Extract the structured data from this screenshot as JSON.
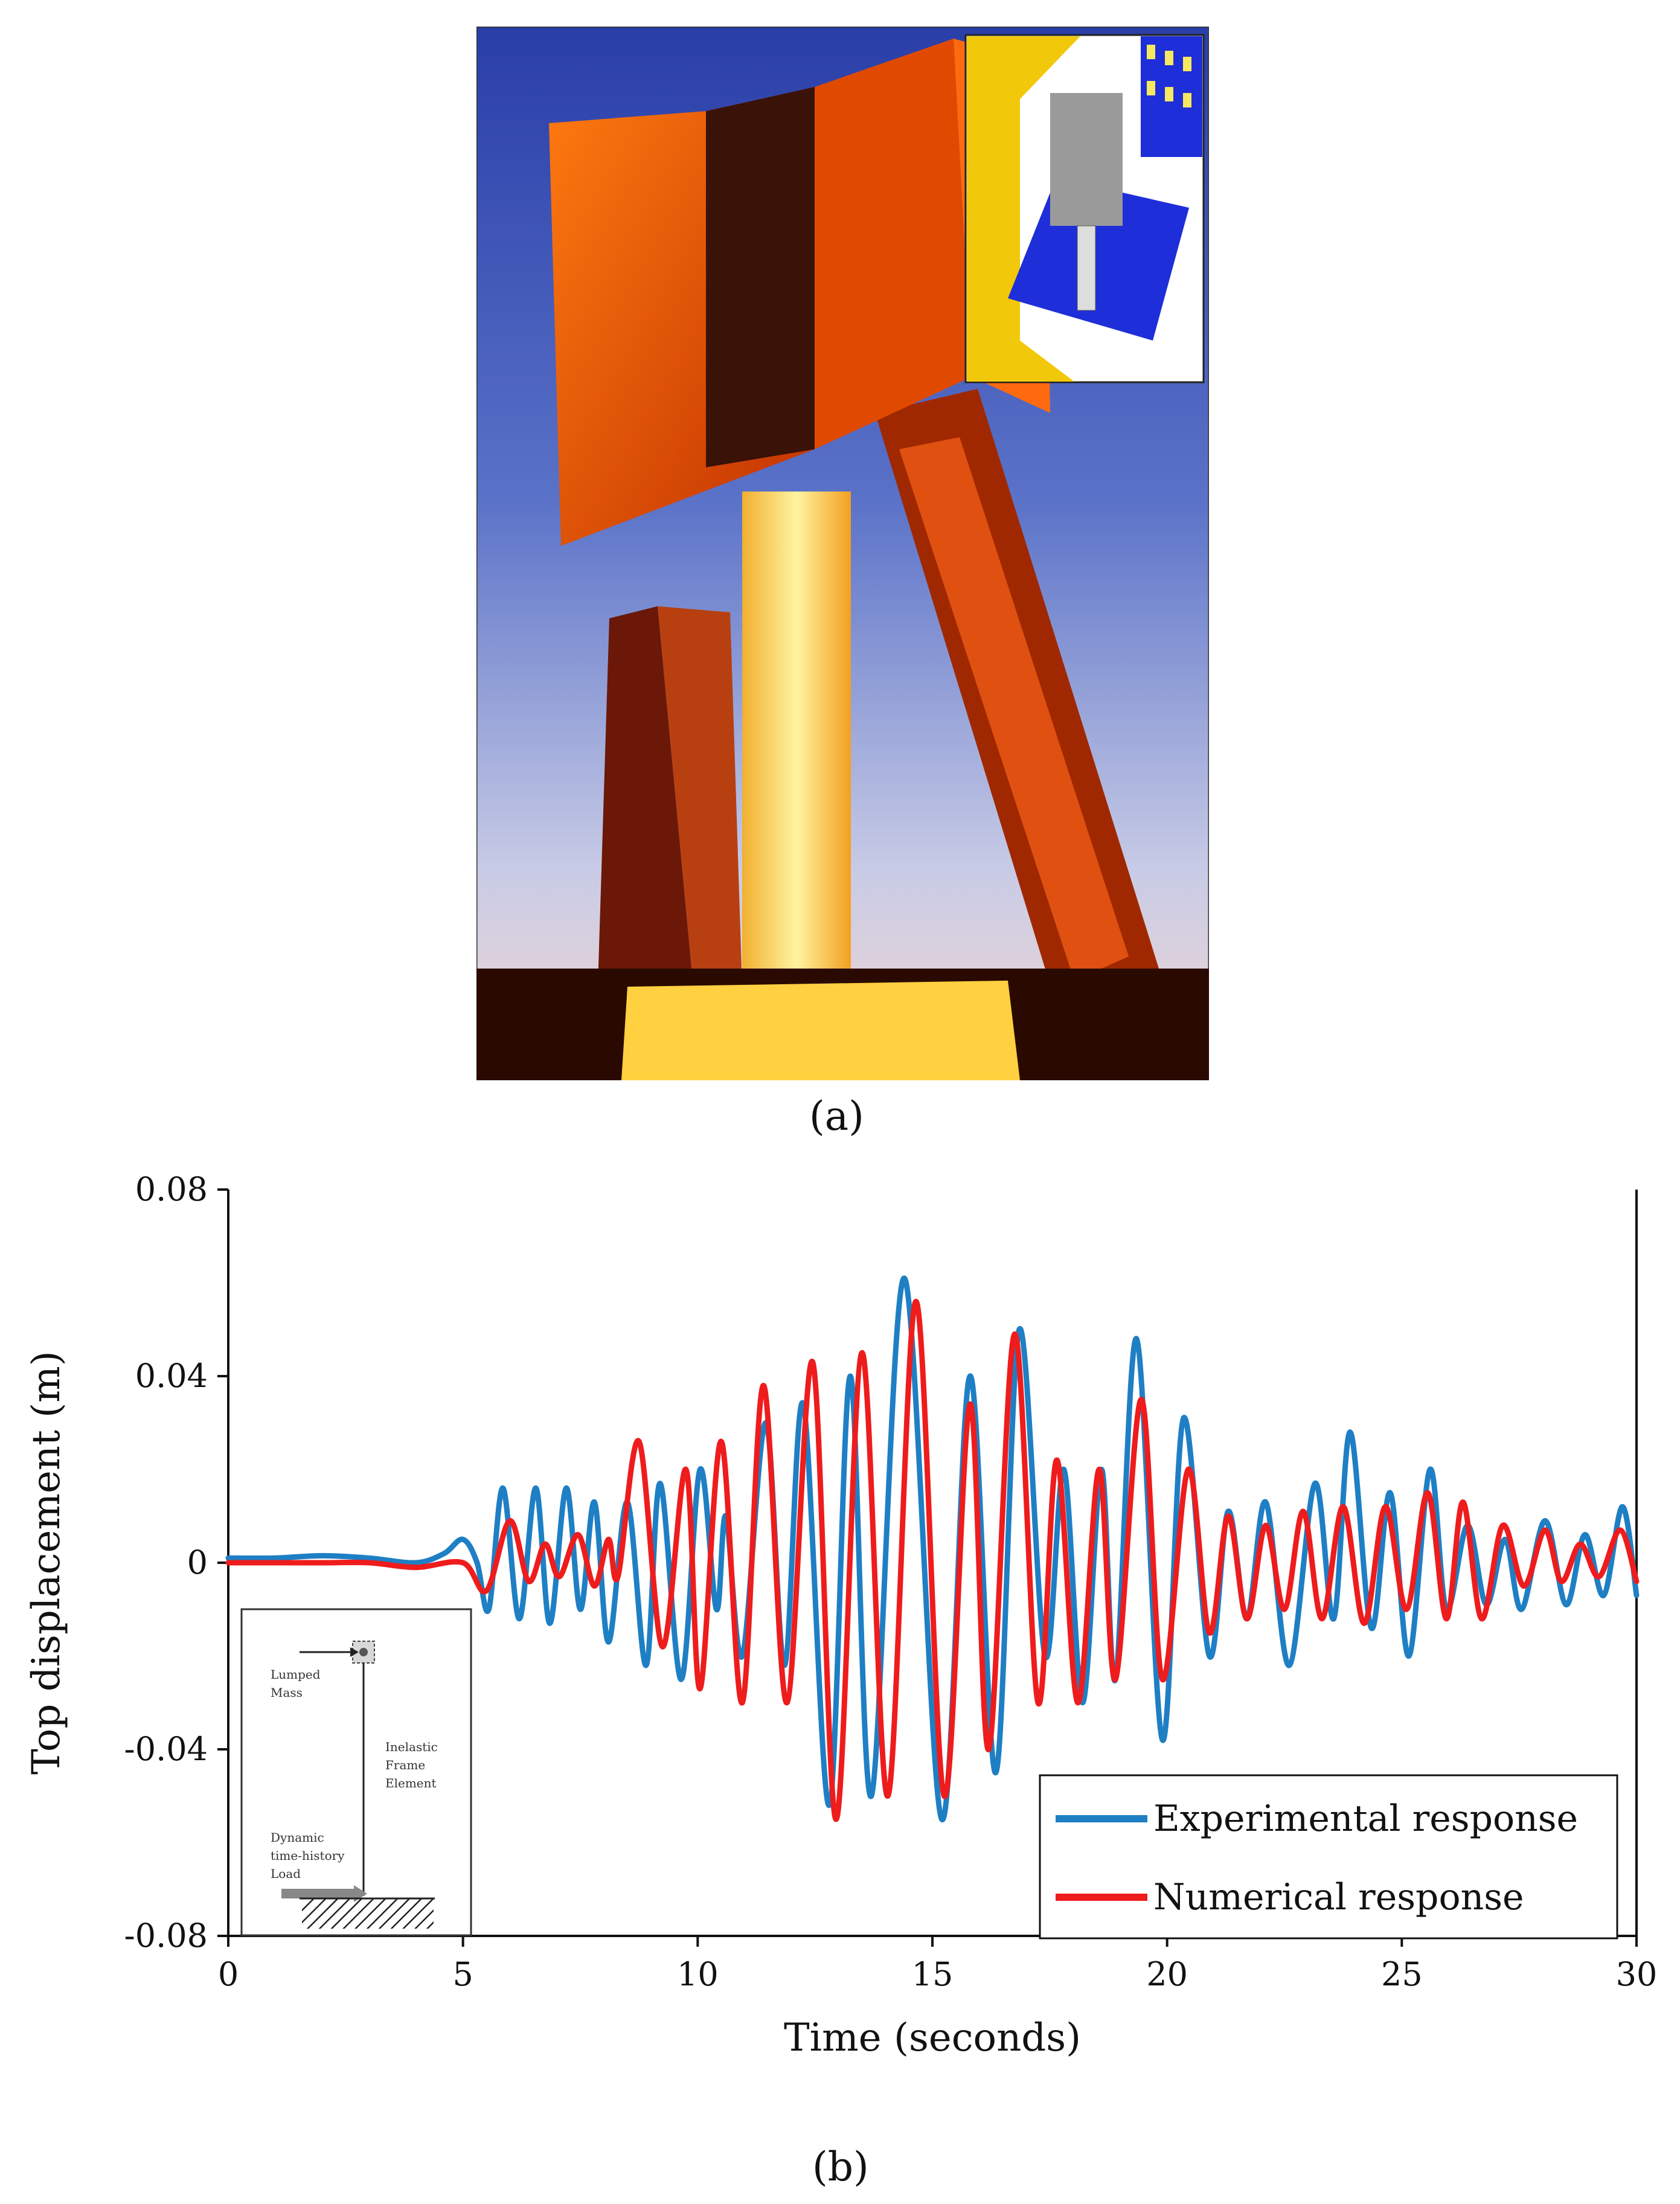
{
  "captions": {
    "a": "(a)",
    "b": "(b)"
  },
  "photo": {
    "subject": "reinforced-concrete-bridge-pier-specimen-photo",
    "inset": "test-setup-schematic"
  },
  "inset_model": {
    "lumped_mass_label": "Lumped Mass",
    "frame_label": "Inelastic Frame Element",
    "load_label": "Dynamic time-history Load"
  },
  "chart_data": {
    "type": "line",
    "title": "",
    "xlabel": "Time (seconds)",
    "ylabel": "Top displacement (m)",
    "xlim": [
      0,
      30
    ],
    "ylim": [
      -0.08,
      0.08
    ],
    "xticks": [
      0,
      5,
      10,
      15,
      20,
      25,
      30
    ],
    "yticks": [
      0.08,
      0.04,
      0,
      -0.04,
      -0.08
    ],
    "ytick_labels": [
      "0.08",
      "0.04",
      "0",
      "-0.04",
      "-0.08"
    ],
    "grid": false,
    "legend_position": "lower-right",
    "series": [
      {
        "name": "Experimental response",
        "color": "#1f7fc4",
        "points": [
          [
            0,
            0.001
          ],
          [
            1,
            0.001
          ],
          [
            2,
            0.0015
          ],
          [
            3,
            0.001
          ],
          [
            4,
            0.0
          ],
          [
            4.6,
            0.002
          ],
          [
            5.0,
            0.005
          ],
          [
            5.3,
            0.0
          ],
          [
            5.55,
            -0.01
          ],
          [
            5.85,
            0.016
          ],
          [
            6.2,
            -0.012
          ],
          [
            6.55,
            0.016
          ],
          [
            6.85,
            -0.013
          ],
          [
            7.2,
            0.016
          ],
          [
            7.5,
            -0.01
          ],
          [
            7.8,
            0.013
          ],
          [
            8.1,
            -0.017
          ],
          [
            8.5,
            0.013
          ],
          [
            8.9,
            -0.022
          ],
          [
            9.2,
            0.017
          ],
          [
            9.65,
            -0.025
          ],
          [
            10.05,
            0.02
          ],
          [
            10.4,
            -0.01
          ],
          [
            10.6,
            0.01
          ],
          [
            10.95,
            -0.02
          ],
          [
            11.45,
            0.03
          ],
          [
            11.85,
            -0.022
          ],
          [
            12.25,
            0.034
          ],
          [
            12.8,
            -0.052
          ],
          [
            13.25,
            0.04
          ],
          [
            13.7,
            -0.05
          ],
          [
            14.4,
            0.061
          ],
          [
            15.2,
            -0.055
          ],
          [
            15.8,
            0.04
          ],
          [
            16.35,
            -0.045
          ],
          [
            16.85,
            0.05
          ],
          [
            17.4,
            -0.02
          ],
          [
            17.8,
            0.02
          ],
          [
            18.2,
            -0.03
          ],
          [
            18.6,
            0.02
          ],
          [
            18.9,
            -0.025
          ],
          [
            19.35,
            0.048
          ],
          [
            19.9,
            -0.038
          ],
          [
            20.35,
            0.031
          ],
          [
            20.9,
            -0.02
          ],
          [
            21.3,
            0.011
          ],
          [
            21.7,
            -0.012
          ],
          [
            22.1,
            0.013
          ],
          [
            22.6,
            -0.022
          ],
          [
            23.15,
            0.017
          ],
          [
            23.55,
            -0.012
          ],
          [
            23.9,
            0.028
          ],
          [
            24.35,
            -0.014
          ],
          [
            24.75,
            0.015
          ],
          [
            25.15,
            -0.02
          ],
          [
            25.6,
            0.02
          ],
          [
            25.95,
            -0.01
          ],
          [
            26.4,
            0.008
          ],
          [
            26.8,
            -0.009
          ],
          [
            27.2,
            0.005
          ],
          [
            27.55,
            -0.01
          ],
          [
            28.05,
            0.009
          ],
          [
            28.5,
            -0.009
          ],
          [
            28.9,
            0.006
          ],
          [
            29.3,
            -0.007
          ],
          [
            29.7,
            0.012
          ],
          [
            30,
            -0.007
          ]
        ]
      },
      {
        "name": "Numerical response",
        "color": "#ee1c1c",
        "points": [
          [
            0,
            0.0
          ],
          [
            1,
            0.0
          ],
          [
            2,
            0.0
          ],
          [
            3,
            0.0
          ],
          [
            4,
            -0.001
          ],
          [
            5.0,
            0.0
          ],
          [
            5.5,
            -0.006
          ],
          [
            6.0,
            0.009
          ],
          [
            6.4,
            -0.004
          ],
          [
            6.75,
            0.004
          ],
          [
            7.05,
            -0.003
          ],
          [
            7.45,
            0.006
          ],
          [
            7.8,
            -0.005
          ],
          [
            8.1,
            0.005
          ],
          [
            8.3,
            -0.003
          ],
          [
            8.75,
            0.026
          ],
          [
            9.25,
            -0.018
          ],
          [
            9.75,
            0.02
          ],
          [
            10.05,
            -0.027
          ],
          [
            10.5,
            0.026
          ],
          [
            10.95,
            -0.03
          ],
          [
            11.4,
            0.038
          ],
          [
            11.9,
            -0.03
          ],
          [
            12.45,
            0.043
          ],
          [
            12.95,
            -0.055
          ],
          [
            13.5,
            0.045
          ],
          [
            14.05,
            -0.05
          ],
          [
            14.65,
            0.056
          ],
          [
            15.25,
            -0.05
          ],
          [
            15.8,
            0.034
          ],
          [
            16.2,
            -0.04
          ],
          [
            16.75,
            0.049
          ],
          [
            17.25,
            -0.03
          ],
          [
            17.65,
            0.022
          ],
          [
            18.1,
            -0.03
          ],
          [
            18.55,
            0.02
          ],
          [
            18.9,
            -0.025
          ],
          [
            19.45,
            0.035
          ],
          [
            19.9,
            -0.025
          ],
          [
            20.45,
            0.02
          ],
          [
            20.9,
            -0.015
          ],
          [
            21.3,
            0.01
          ],
          [
            21.7,
            -0.012
          ],
          [
            22.1,
            0.008
          ],
          [
            22.5,
            -0.01
          ],
          [
            22.9,
            0.011
          ],
          [
            23.3,
            -0.012
          ],
          [
            23.75,
            0.012
          ],
          [
            24.2,
            -0.013
          ],
          [
            24.65,
            0.012
          ],
          [
            25.1,
            -0.01
          ],
          [
            25.55,
            0.015
          ],
          [
            25.95,
            -0.012
          ],
          [
            26.3,
            0.013
          ],
          [
            26.7,
            -0.012
          ],
          [
            27.15,
            0.008
          ],
          [
            27.6,
            -0.005
          ],
          [
            28.05,
            0.007
          ],
          [
            28.4,
            -0.004
          ],
          [
            28.8,
            0.004
          ],
          [
            29.2,
            -0.003
          ],
          [
            29.65,
            0.007
          ],
          [
            30,
            -0.004
          ]
        ]
      }
    ]
  }
}
